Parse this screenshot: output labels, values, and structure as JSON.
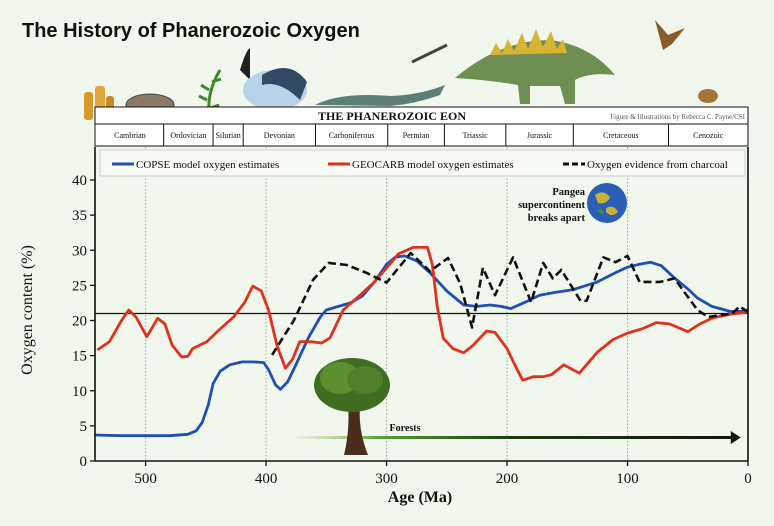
{
  "title": "The History of Phanerozoic Oxygen",
  "eon_header": "THE PHANEROZOIC EON",
  "credit": "Figure & Illustrations by Rebecca C. Payne/CSI",
  "periods": [
    {
      "name": "Cambrian",
      "start": 541,
      "end": 485
    },
    {
      "name": "Ordovician",
      "start": 485,
      "end": 444
    },
    {
      "name": "Silurian",
      "start": 444,
      "end": 419
    },
    {
      "name": "Devonian",
      "start": 419,
      "end": 359
    },
    {
      "name": "Carboniferous",
      "start": 359,
      "end": 299
    },
    {
      "name": "Permian",
      "start": 299,
      "end": 252
    },
    {
      "name": "Triassic",
      "start": 252,
      "end": 201
    },
    {
      "name": "Jurassic",
      "start": 201,
      "end": 145
    },
    {
      "name": "Cretaceous",
      "start": 145,
      "end": 66
    },
    {
      "name": "Cenozoic",
      "start": 66,
      "end": 0
    }
  ],
  "annotations": {
    "pangea": [
      "Pangea",
      "supercontinent",
      "breaks apart"
    ],
    "forests": "Forests"
  },
  "chart_data": {
    "type": "line",
    "xlabel": "Age (Ma)",
    "ylabel": "Oxygen content (%)",
    "xlim": [
      542,
      0
    ],
    "ylim": [
      0,
      42
    ],
    "xticks": [
      500,
      400,
      300,
      200,
      100,
      0
    ],
    "yticks": [
      0,
      5,
      10,
      15,
      20,
      25,
      30,
      35,
      40
    ],
    "reference_line": 21,
    "forests_arrow": {
      "from": 380,
      "to": 6
    },
    "legend_placement": "top",
    "grid": "vertical dotted at x ticks",
    "series": [
      {
        "name": "COPSE model oxygen estimates",
        "color": "#1f4fb5",
        "style": "solid",
        "x": [
          542,
          520,
          500,
          480,
          465,
          458,
          453,
          448,
          444,
          438,
          430,
          420,
          410,
          402,
          398,
          392,
          388,
          382,
          375,
          365,
          355,
          350,
          340,
          330,
          320,
          310,
          300,
          293,
          285,
          275,
          264,
          250,
          236,
          225,
          214,
          205,
          197,
          185,
          173,
          160,
          145,
          125,
          110,
          100,
          90,
          81,
          72,
          62,
          50,
          42,
          30,
          15,
          5,
          0
        ],
        "y": [
          3.7,
          3.6,
          3.6,
          3.6,
          3.8,
          4.3,
          5.5,
          8,
          11,
          12.8,
          13.7,
          14.1,
          14.1,
          14,
          13,
          10.8,
          10.2,
          11.3,
          13.8,
          17.5,
          20.5,
          21.5,
          22,
          22.5,
          23.5,
          25.5,
          28,
          29,
          29.2,
          28.5,
          26.8,
          24.2,
          22.2,
          22,
          22.2,
          22,
          21.7,
          22.6,
          23.6,
          24,
          24.4,
          25.5,
          26.8,
          27.6,
          28,
          28.3,
          27.8,
          26.2,
          24.5,
          23.2,
          22,
          21.3,
          21.3,
          21.5
        ]
      },
      {
        "name": "GEOCARB model oxygen estimates",
        "color": "#e0301e",
        "style": "solid",
        "x": [
          540,
          530,
          520,
          514,
          508,
          499,
          490,
          484,
          478,
          470,
          465,
          461,
          449,
          440,
          427,
          418,
          411,
          404,
          398,
          391,
          384,
          378,
          372,
          363,
          354,
          347,
          336,
          322,
          310,
          300,
          290,
          278,
          266,
          262,
          258,
          253,
          245,
          236,
          228,
          217,
          210,
          200,
          193,
          187,
          178,
          170,
          163,
          153,
          140,
          125,
          112,
          100,
          88,
          76,
          65,
          58,
          50,
          40,
          29,
          15,
          0
        ],
        "y": [
          15.8,
          17,
          20,
          21.5,
          20.5,
          17.7,
          20.3,
          19.5,
          16.5,
          14.8,
          14.9,
          16,
          17,
          18.5,
          20.5,
          22.5,
          24.9,
          24.2,
          21.5,
          16.5,
          13.2,
          14.5,
          17,
          17,
          16.8,
          17.5,
          21.5,
          23.6,
          25.5,
          27.5,
          29.5,
          30.4,
          30.4,
          28,
          22,
          17.5,
          16,
          15.4,
          16.5,
          18.5,
          18.3,
          16,
          13.5,
          11.5,
          12,
          12,
          12.3,
          13.7,
          12.5,
          15.5,
          17.3,
          18.2,
          18.8,
          19.7,
          19.5,
          19,
          18.4,
          19.5,
          20.4,
          20.9,
          21.2
        ]
      },
      {
        "name": "Oxygen evidence from charcoal",
        "color": "#111111",
        "style": "dashed",
        "x": [
          395,
          377,
          361,
          348,
          333,
          317,
          300,
          290,
          280,
          264,
          249,
          239,
          229,
          220,
          210,
          195,
          180,
          170,
          162,
          155,
          139,
          134,
          120,
          110,
          100,
          90,
          73,
          61,
          42,
          33,
          13,
          7,
          0
        ],
        "y": [
          15.1,
          20,
          25.8,
          28.2,
          27.9,
          26.8,
          25.4,
          27.5,
          29.6,
          27,
          28.9,
          25.3,
          19,
          27.5,
          23.6,
          29,
          22.6,
          28.2,
          26,
          27.2,
          22.8,
          22.8,
          29,
          28.3,
          29.2,
          25.5,
          25.5,
          26,
          21.5,
          20.5,
          21,
          22,
          21.2
        ]
      }
    ]
  }
}
